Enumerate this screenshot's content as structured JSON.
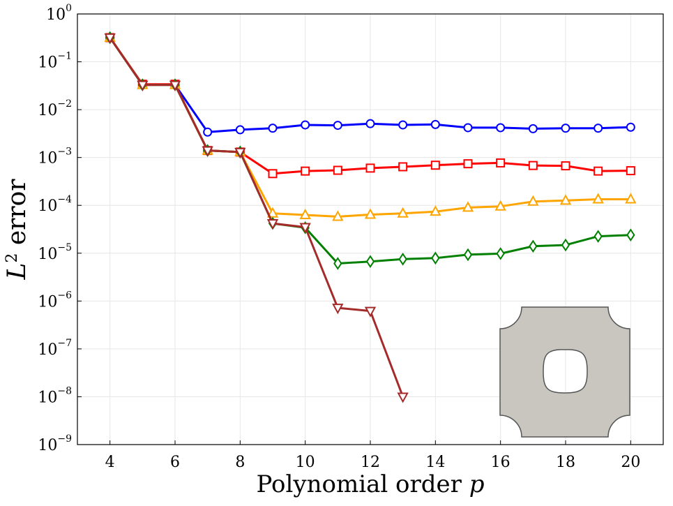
{
  "chart_data": {
    "type": "line",
    "xlabel": "Polynomial order",
    "xlabel_var": "p",
    "ylabel_base": "L",
    "ylabel_exp": "2",
    "ylabel_rest": " error",
    "yscale": "log",
    "xlim": [
      3,
      21
    ],
    "ylim": [
      1e-09,
      1
    ],
    "grid": true,
    "x_ticks": [
      {
        "v": 4,
        "label": "4"
      },
      {
        "v": 6,
        "label": "6"
      },
      {
        "v": 8,
        "label": "8"
      },
      {
        "v": 10,
        "label": "10"
      },
      {
        "v": 12,
        "label": "12"
      },
      {
        "v": 14,
        "label": "14"
      },
      {
        "v": 16,
        "label": "16"
      },
      {
        "v": 18,
        "label": "18"
      },
      {
        "v": 20,
        "label": "20"
      }
    ],
    "y_ticks": [
      {
        "v": 1e-09,
        "base": "10",
        "exp": "−9"
      },
      {
        "v": 1e-08,
        "base": "10",
        "exp": "−8"
      },
      {
        "v": 1e-07,
        "base": "10",
        "exp": "−7"
      },
      {
        "v": 1e-06,
        "base": "10",
        "exp": "−6"
      },
      {
        "v": 1e-05,
        "base": "10",
        "exp": "−5"
      },
      {
        "v": 0.0001,
        "base": "10",
        "exp": "−4"
      },
      {
        "v": 0.001,
        "base": "10",
        "exp": "−3"
      },
      {
        "v": 0.01,
        "base": "10",
        "exp": "−2"
      },
      {
        "v": 0.1,
        "base": "10",
        "exp": "−1"
      },
      {
        "v": 1,
        "base": "10",
        "exp": "0"
      }
    ],
    "series": [
      {
        "color": "#0000ff",
        "marker": "circle",
        "x": [
          4,
          5,
          6,
          7,
          8,
          9,
          10,
          11,
          12,
          13,
          14,
          15,
          16,
          17,
          18,
          19,
          20
        ],
        "y": [
          0.32,
          0.033,
          0.033,
          0.0034,
          0.0038,
          0.0041,
          0.0048,
          0.0047,
          0.0051,
          0.0048,
          0.0049,
          0.0042,
          0.0042,
          0.004,
          0.0041,
          0.0041,
          0.0043
        ]
      },
      {
        "color": "#ff0000",
        "marker": "square",
        "x": [
          4,
          5,
          6,
          7,
          8,
          9,
          10,
          11,
          12,
          13,
          14,
          15,
          16,
          17,
          18,
          19,
          20
        ],
        "y": [
          0.32,
          0.034,
          0.034,
          0.0014,
          0.0013,
          0.00046,
          0.00052,
          0.00054,
          0.0006,
          0.00064,
          0.00069,
          0.00074,
          0.00077,
          0.00068,
          0.00067,
          0.00052,
          0.00053
        ]
      },
      {
        "color": "#ffa500",
        "marker": "triangle-up",
        "x": [
          4,
          5,
          6,
          7,
          8,
          9,
          10,
          11,
          12,
          13,
          14,
          15,
          16,
          17,
          18,
          19,
          20
        ],
        "y": [
          0.32,
          0.033,
          0.033,
          0.0014,
          0.0013,
          6.8e-05,
          6.3e-05,
          5.8e-05,
          6.4e-05,
          6.8e-05,
          7.4e-05,
          9e-05,
          9.5e-05,
          0.00012,
          0.000126,
          0.000134,
          0.000134
        ]
      },
      {
        "color": "#008000",
        "marker": "diamond",
        "x": [
          4,
          5,
          6,
          7,
          8,
          9,
          10,
          11,
          12,
          13,
          14,
          15,
          16,
          17,
          18,
          19,
          20
        ],
        "y": [
          0.32,
          0.033,
          0.033,
          0.0014,
          0.0013,
          4.2e-05,
          3.4e-05,
          6.1e-06,
          6.7e-06,
          7.5e-06,
          7.9e-06,
          9.3e-06,
          9.8e-06,
          1.4e-05,
          1.48e-05,
          2.25e-05,
          2.4e-05
        ]
      },
      {
        "color": "#a52a2a",
        "marker": "triangle-down",
        "x": [
          4,
          5,
          6,
          7,
          8,
          9,
          10,
          11,
          12,
          13
        ],
        "y": [
          0.32,
          0.033,
          0.033,
          0.0014,
          0.0013,
          4.2e-05,
          3.5e-05,
          7.2e-07,
          6.2e-07,
          1e-08
        ]
      }
    ],
    "inset": {
      "description_icon": "domain-shape-icon",
      "fill": "#c8c6bf",
      "stroke": "#555555"
    }
  }
}
